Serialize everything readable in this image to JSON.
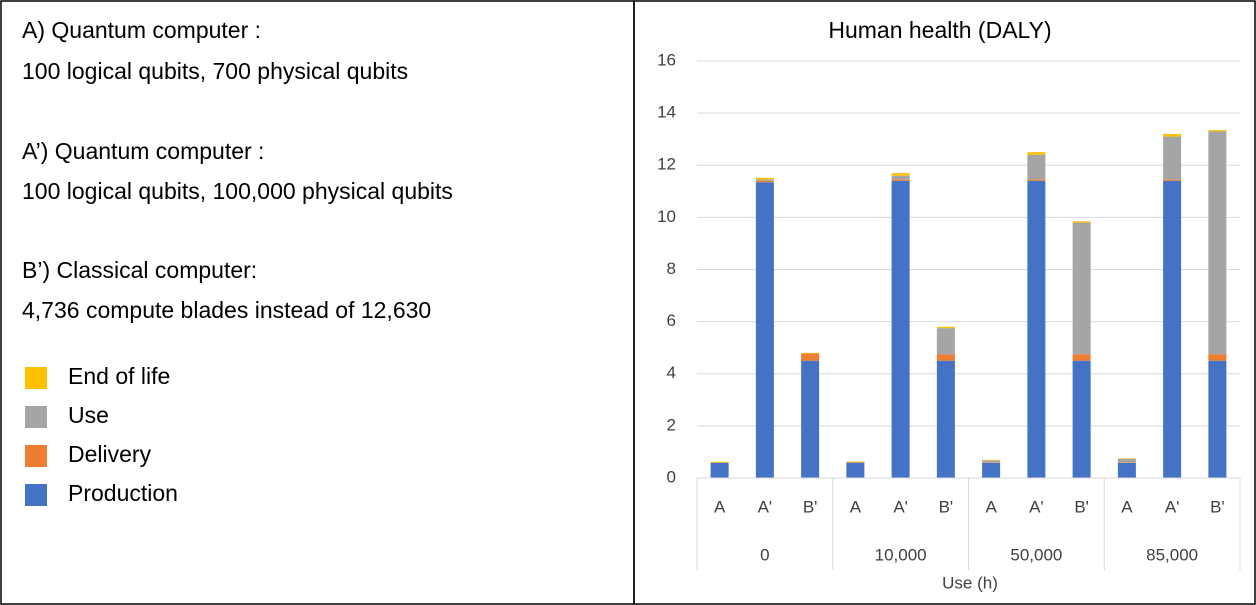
{
  "notes": [
    "A) Quantum computer :",
    "100 logical qubits, 700 physical qubits",
    "A’) Quantum computer :",
    "100 logical qubits, 100,000 physical qubits",
    "B’) Classical computer:",
    "4,736 compute blades instead of 12,630"
  ],
  "chart_data": {
    "type": "stacked_bar",
    "title": "Human health (DALY)",
    "x_label": "Use (h)",
    "categories": [
      "A",
      "A'",
      "B'",
      "A",
      "A'",
      "B'",
      "A",
      "A'",
      "B'",
      "A",
      "A'",
      "B'"
    ],
    "groups": [
      "0",
      "10,000",
      "50,000",
      "85,000"
    ],
    "series": [
      {
        "name": "End of life",
        "color": "#ffc000",
        "values": [
          0.02,
          0.07,
          0.02,
          0.02,
          0.1,
          0.05,
          0.02,
          0.1,
          0.05,
          0.02,
          0.1,
          0.05
        ]
      },
      {
        "name": "Use",
        "color": "#a5a5a5",
        "values": [
          0,
          0.05,
          0,
          0.02,
          0.15,
          1.0,
          0.08,
          0.95,
          5.05,
          0.13,
          1.65,
          8.55
        ]
      },
      {
        "name": "Delivery",
        "color": "#ed7d31",
        "values": [
          0.02,
          0.05,
          0.28,
          0.02,
          0.05,
          0.25,
          0.02,
          0.05,
          0.25,
          0.02,
          0.05,
          0.25
        ]
      },
      {
        "name": "Production",
        "color": "#4472c4",
        "values": [
          0.58,
          11.35,
          4.5,
          0.58,
          11.4,
          4.5,
          0.58,
          11.4,
          4.5,
          0.58,
          11.4,
          4.5
        ]
      }
    ],
    "ylim": [
      0,
      16
    ],
    "yticks": [
      0,
      2,
      4,
      6,
      8,
      10,
      12,
      14,
      16
    ],
    "grid": true
  }
}
